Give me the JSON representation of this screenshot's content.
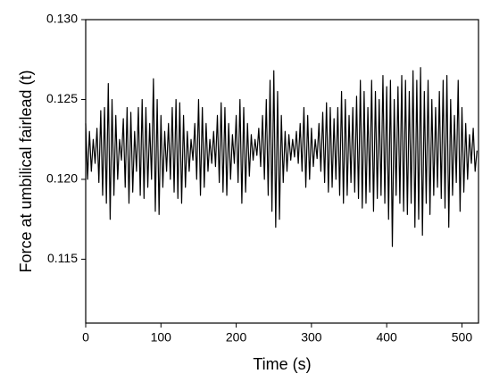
{
  "chart_data": {
    "type": "line",
    "x_label": "Time (s)",
    "y_label": "Force at umbilical fairlead (t)",
    "xlim": [
      0,
      522
    ],
    "ylim": [
      0.111,
      0.13
    ],
    "xticks": [
      0,
      100,
      200,
      300,
      400,
      500
    ],
    "yticks": [
      0.115,
      {
        "value": 0.12,
        "label": "0.120"
      },
      0.125,
      {
        "value": 0.13,
        "label": "0.130"
      }
    ],
    "x": [
      0,
      2.5,
      5,
      7.5,
      10,
      12.5,
      15,
      17.5,
      20,
      22.5,
      25,
      27.5,
      30,
      32.5,
      35,
      37.5,
      40,
      42.5,
      45,
      47.5,
      50,
      52.5,
      55,
      57.5,
      60,
      62.5,
      65,
      67.5,
      70,
      72.5,
      75,
      77.5,
      80,
      82.5,
      85,
      87.5,
      90,
      92.5,
      95,
      97.5,
      100,
      102.5,
      105,
      107.5,
      110,
      112.5,
      115,
      117.5,
      120,
      122.5,
      125,
      127.5,
      130,
      132.5,
      135,
      137.5,
      140,
      142.5,
      145,
      147.5,
      150,
      152.5,
      155,
      157.5,
      160,
      162.5,
      165,
      167.5,
      170,
      172.5,
      175,
      177.5,
      180,
      182.5,
      185,
      187.5,
      190,
      192.5,
      195,
      197.5,
      200,
      202.5,
      205,
      207.5,
      210,
      212.5,
      215,
      217.5,
      220,
      222.5,
      225,
      227.5,
      230,
      232.5,
      235,
      237.5,
      240,
      242.5,
      245,
      247.5,
      250,
      252.5,
      255,
      257.5,
      260,
      262.5,
      265,
      267.5,
      270,
      272.5,
      275,
      277.5,
      280,
      282.5,
      285,
      287.5,
      290,
      292.5,
      295,
      297.5,
      300,
      302.5,
      305,
      307.5,
      310,
      312.5,
      315,
      317.5,
      320,
      322.5,
      325,
      327.5,
      330,
      332.5,
      335,
      337.5,
      340,
      342.5,
      345,
      347.5,
      350,
      352.5,
      355,
      357.5,
      360,
      362.5,
      365,
      367.5,
      370,
      372.5,
      375,
      377.5,
      380,
      382.5,
      385,
      387.5,
      390,
      392.5,
      395,
      397.5,
      400,
      402.5,
      405,
      407.5,
      410,
      412.5,
      415,
      417.5,
      420,
      422.5,
      425,
      427.5,
      430,
      432.5,
      435,
      437.5,
      440,
      442.5,
      445,
      447.5,
      450,
      452.5,
      455,
      457.5,
      460,
      462.5,
      465,
      467.5,
      470,
      472.5,
      475,
      477.5,
      480,
      482.5,
      485,
      487.5,
      490,
      492.5,
      495,
      497.5,
      500,
      502.5,
      505,
      507.5,
      510,
      512.5,
      515,
      517.5,
      520
    ],
    "series": [
      {
        "color": "#000000",
        "values": [
          0.1235,
          0.12,
          0.123,
          0.1205,
          0.1225,
          0.121,
          0.1232,
          0.1198,
          0.1243,
          0.119,
          0.1245,
          0.1185,
          0.126,
          0.1175,
          0.125,
          0.119,
          0.124,
          0.12,
          0.1225,
          0.1212,
          0.1238,
          0.1195,
          0.1245,
          0.1185,
          0.1242,
          0.1192,
          0.123,
          0.1205,
          0.1245,
          0.119,
          0.125,
          0.1188,
          0.1245,
          0.1195,
          0.1235,
          0.12,
          0.1263,
          0.118,
          0.125,
          0.1178,
          0.124,
          0.1195,
          0.123,
          0.1205,
          0.1235,
          0.12,
          0.1245,
          0.1192,
          0.125,
          0.1188,
          0.1248,
          0.1185,
          0.124,
          0.1195,
          0.123,
          0.1205,
          0.1225,
          0.1212,
          0.1235,
          0.12,
          0.125,
          0.119,
          0.1245,
          0.1195,
          0.1235,
          0.1205,
          0.1225,
          0.121,
          0.123,
          0.1208,
          0.124,
          0.1198,
          0.1248,
          0.1192,
          0.1245,
          0.119,
          0.1235,
          0.12,
          0.1228,
          0.121,
          0.124,
          0.1198,
          0.125,
          0.1185,
          0.1245,
          0.1192,
          0.1235,
          0.1202,
          0.1228,
          0.1212,
          0.1225,
          0.1215,
          0.1232,
          0.1208,
          0.124,
          0.12,
          0.125,
          0.119,
          0.1262,
          0.118,
          0.1268,
          0.117,
          0.1255,
          0.1175,
          0.124,
          0.1198,
          0.123,
          0.1205,
          0.1228,
          0.1212,
          0.1225,
          0.1214,
          0.123,
          0.121,
          0.1235,
          0.1205,
          0.1245,
          0.1195,
          0.124,
          0.12,
          0.1232,
          0.1208,
          0.1225,
          0.1213,
          0.1235,
          0.1205,
          0.1242,
          0.1198,
          0.1248,
          0.1192,
          0.1245,
          0.1195,
          0.1238,
          0.12,
          0.1245,
          0.119,
          0.1255,
          0.1185,
          0.125,
          0.119,
          0.124,
          0.1198,
          0.1245,
          0.1192,
          0.1252,
          0.1188,
          0.1262,
          0.1182,
          0.1255,
          0.1185,
          0.1245,
          0.1192,
          0.1262,
          0.118,
          0.1255,
          0.1188,
          0.125,
          0.119,
          0.1265,
          0.1185,
          0.1258,
          0.1175,
          0.1262,
          0.1158,
          0.125,
          0.119,
          0.1258,
          0.1185,
          0.1265,
          0.118,
          0.1262,
          0.1178,
          0.1255,
          0.1185,
          0.1268,
          0.117,
          0.1262,
          0.1175,
          0.127,
          0.1165,
          0.1255,
          0.1185,
          0.1262,
          0.1178,
          0.125,
          0.119,
          0.1245,
          0.1195,
          0.1255,
          0.1188,
          0.1262,
          0.1182,
          0.1265,
          0.117,
          0.125,
          0.119,
          0.124,
          0.1198,
          0.1262,
          0.118,
          0.1245,
          0.1192,
          0.1235,
          0.12,
          0.1228,
          0.121,
          0.1232,
          0.1205,
          0.1218
        ]
      }
    ]
  }
}
